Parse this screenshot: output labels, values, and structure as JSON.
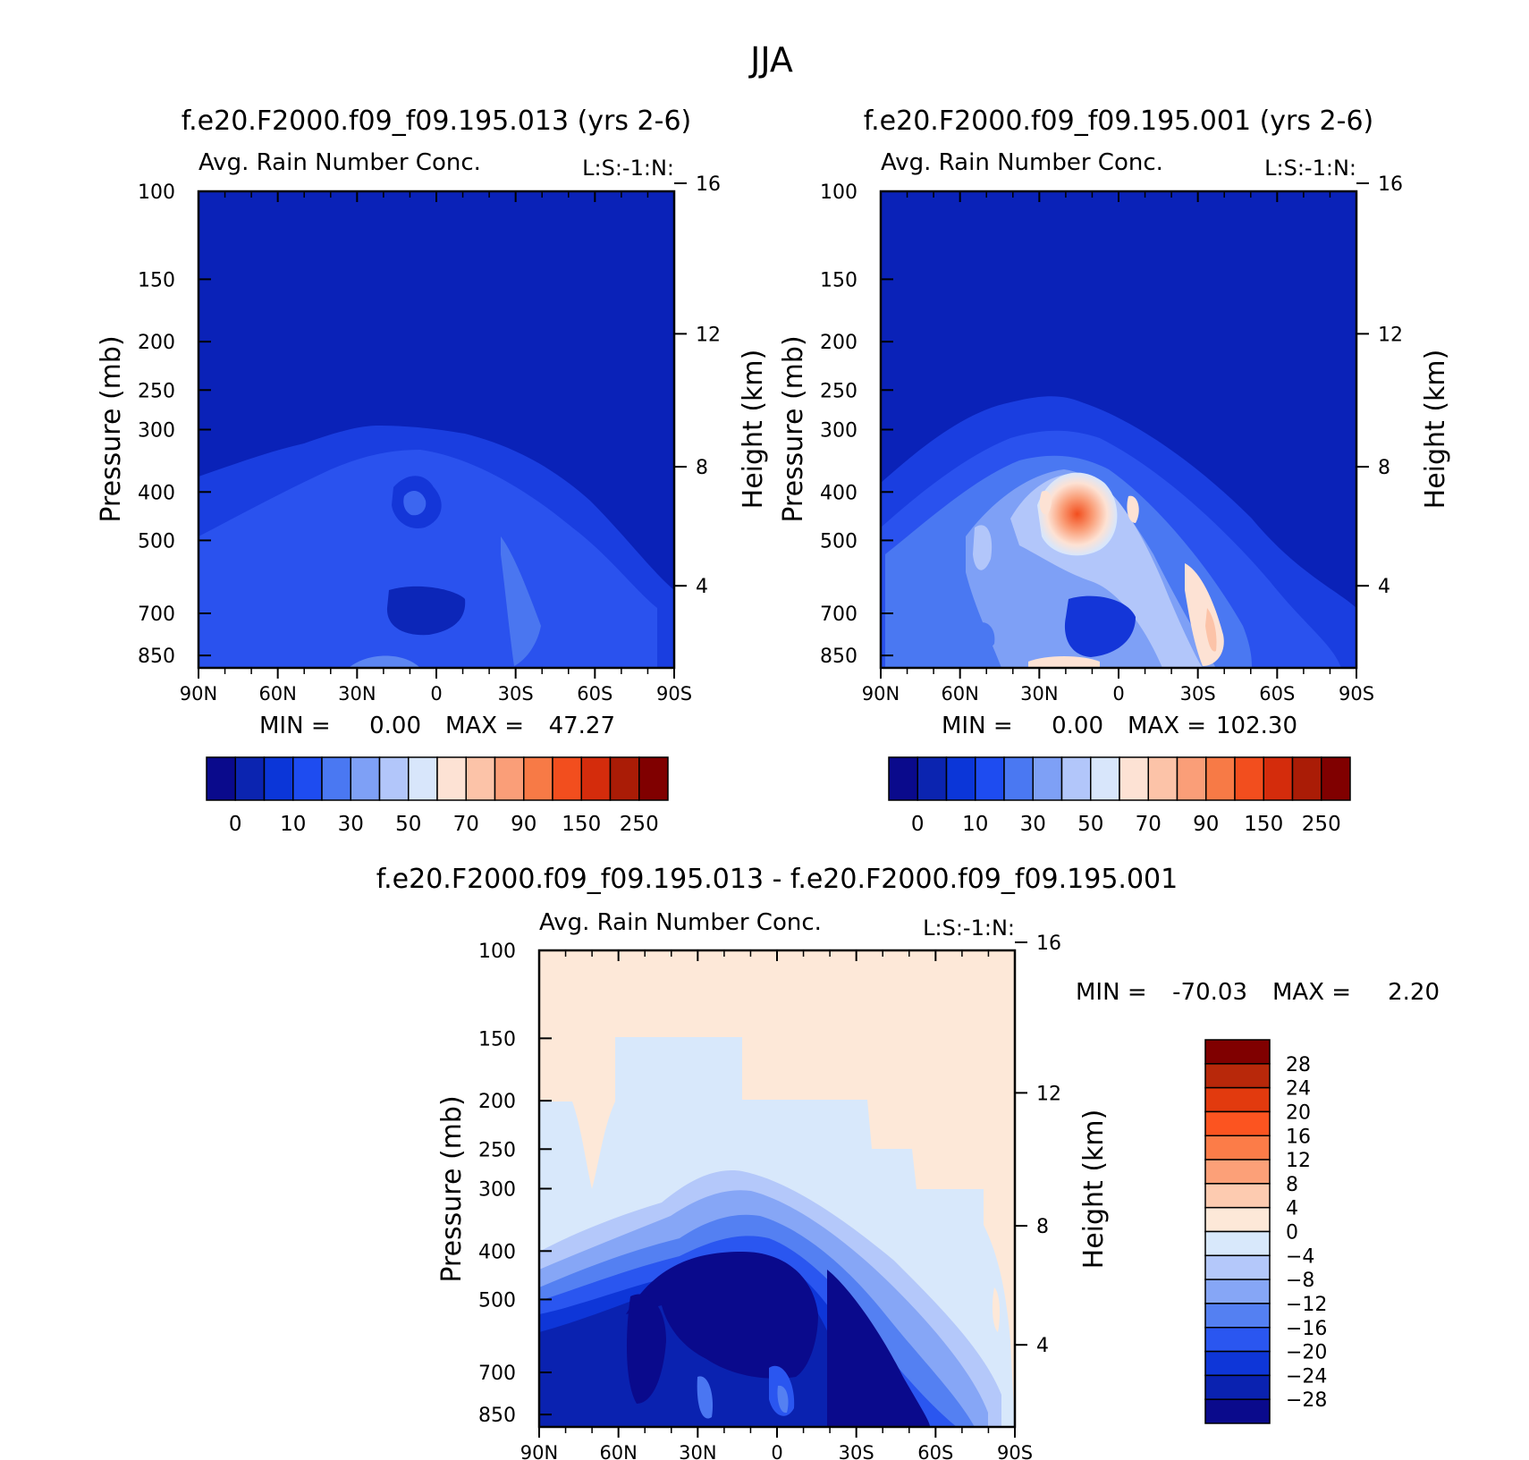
{
  "title": "JJA",
  "colors": {
    "tropo_blue": "#0a22b8",
    "blue_mid": "#2244e8",
    "blue_light": "#5a82f0"
  },
  "chart_data": [
    {
      "id": "top-left",
      "type": "heatmap",
      "title": "f.e20.F2000.f09_f09.195.013 (yrs 2-6)",
      "variable": "Avg. Rain Number Conc.",
      "annotation": "L:S:-1:N:",
      "xlabel": "",
      "ylabel": "Pressure (mb)",
      "y2label": "Height (km)",
      "x_ticks": [
        "90N",
        "60N",
        "30N",
        "0",
        "30S",
        "60S",
        "90S"
      ],
      "y_ticks": [
        100,
        150,
        200,
        250,
        300,
        400,
        500,
        700,
        850
      ],
      "y2_ticks": [
        16,
        12,
        8,
        4
      ],
      "ylim_mb": [
        100,
        900
      ],
      "min_label": "MIN =",
      "min_value": "0.00",
      "max_label": "MAX =",
      "max_value": "47.27",
      "colorbar": {
        "labels": [
          "0",
          "10",
          "30",
          "50",
          "70",
          "90",
          "150",
          "250"
        ],
        "colors": [
          "#0a0a8c",
          "#0b24b0",
          "#0b36d8",
          "#1e4cf0",
          "#4a78f2",
          "#7ea0f6",
          "#b2c6fa",
          "#d8e6fb",
          "#fde2d4",
          "#fcc3a8",
          "#fa9e78",
          "#f77a46",
          "#f24e1e",
          "#d42c0c",
          "#aa1c06",
          "#800000"
        ]
      }
    },
    {
      "id": "top-right",
      "type": "heatmap",
      "title": "f.e20.F2000.f09_f09.195.001 (yrs 2-6)",
      "variable": "Avg. Rain Number Conc.",
      "annotation": "L:S:-1:N:",
      "xlabel": "",
      "ylabel": "Pressure (mb)",
      "y2label": "Height (km)",
      "x_ticks": [
        "90N",
        "60N",
        "30N",
        "0",
        "30S",
        "60S",
        "90S"
      ],
      "y_ticks": [
        100,
        150,
        200,
        250,
        300,
        400,
        500,
        700,
        850
      ],
      "y2_ticks": [
        16,
        12,
        8,
        4
      ],
      "ylim_mb": [
        100,
        900
      ],
      "min_label": "MIN =",
      "min_value": "0.00",
      "max_label": "MAX =",
      "max_value": "102.30",
      "colorbar": {
        "labels": [
          "0",
          "10",
          "30",
          "50",
          "70",
          "90",
          "150",
          "250"
        ],
        "colors": [
          "#0a0a8c",
          "#0b24b0",
          "#0b36d8",
          "#1e4cf0",
          "#4a78f2",
          "#7ea0f6",
          "#b2c6fa",
          "#d8e6fb",
          "#fde2d4",
          "#fcc3a8",
          "#fa9e78",
          "#f77a46",
          "#f24e1e",
          "#d42c0c",
          "#aa1c06",
          "#800000"
        ]
      }
    },
    {
      "id": "bottom-diff",
      "type": "heatmap",
      "title": "f.e20.F2000.f09_f09.195.013 - f.e20.F2000.f09_f09.195.001",
      "variable": "Avg. Rain Number Conc.",
      "annotation": "L:S:-1:N:",
      "xlabel": "",
      "ylabel": "Pressure (mb)",
      "y2label": "Height (km)",
      "x_ticks": [
        "90N",
        "60N",
        "30N",
        "0",
        "30S",
        "60S",
        "90S"
      ],
      "y_ticks": [
        100,
        150,
        200,
        250,
        300,
        400,
        500,
        700,
        850
      ],
      "y2_ticks": [
        16,
        12,
        8,
        4
      ],
      "ylim_mb": [
        100,
        900
      ],
      "min_label": "MIN =",
      "min_value": "-70.03",
      "max_label": "MAX =",
      "max_value": "2.20",
      "colorbar": {
        "orientation": "vertical",
        "labels": [
          "28",
          "24",
          "20",
          "16",
          "12",
          "8",
          "4",
          "0",
          "-4",
          "-8",
          "-12",
          "-16",
          "-20",
          "-24",
          "-28"
        ],
        "colors": [
          "#800000",
          "#b8280a",
          "#e23a0e",
          "#fc5420",
          "#fc7c48",
          "#fca078",
          "#fdcbb0",
          "#fde8d8",
          "#d8e8fb",
          "#b4c8fa",
          "#86a6f6",
          "#5480f2",
          "#2a56f0",
          "#0e36d8",
          "#0a22b0",
          "#0a0a8c"
        ]
      }
    }
  ]
}
